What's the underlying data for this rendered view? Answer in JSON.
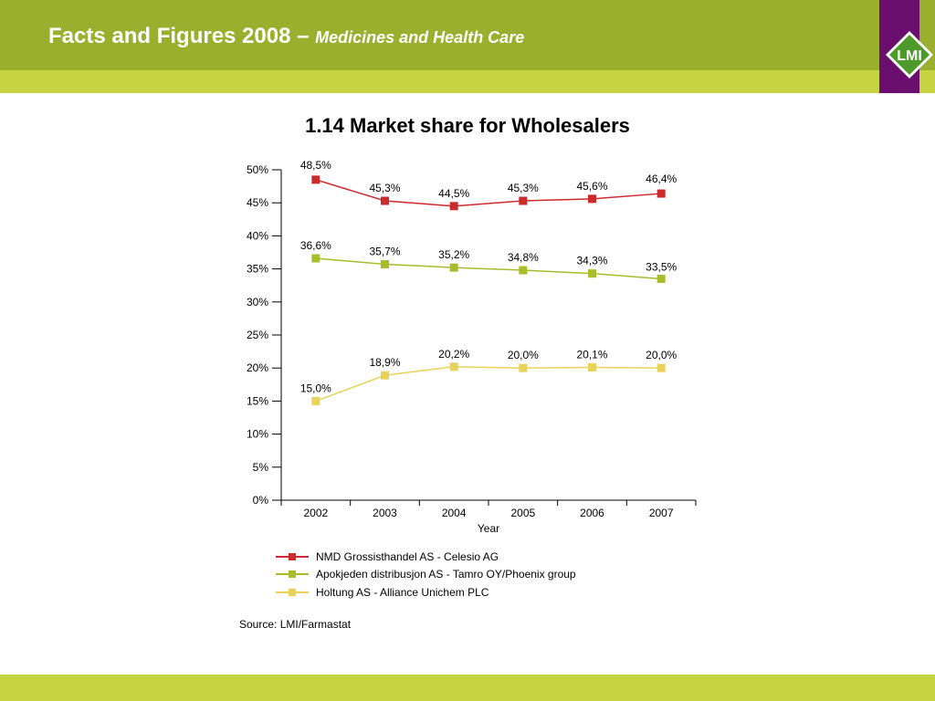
{
  "header": {
    "title": "Facts and Figures 2008 –",
    "subtitle": "Medicines and Health Care",
    "logo_text": "LMI"
  },
  "colors": {
    "header_green": "#9aaf2e",
    "stripe_green": "#c5d440",
    "logo_purple": "#6b0f6e",
    "logo_green": "#4c9a2a"
  },
  "source": "Source: LMI/Farmastat",
  "chart_data": {
    "type": "line",
    "title": "1.14 Market share for Wholesalers",
    "xlabel": "Year",
    "ylabel": "",
    "x": [
      "2002",
      "2003",
      "2004",
      "2005",
      "2006",
      "2007"
    ],
    "yticks": [
      "0%",
      "5%",
      "10%",
      "15%",
      "20%",
      "25%",
      "30%",
      "35%",
      "40%",
      "45%",
      "50%"
    ],
    "ylim": [
      0,
      50
    ],
    "grid": false,
    "legend_position": "bottom",
    "series": [
      {
        "name": "NMD Grossisthandel AS - Celesio AG",
        "color": "#cc2b2e",
        "values": [
          48.5,
          45.3,
          44.5,
          45.3,
          45.6,
          46.4
        ],
        "labels": [
          "48,5%",
          "45,3%",
          "44,5%",
          "45,3%",
          "45,6%",
          "46,4%"
        ]
      },
      {
        "name": "Apokjeden distribusjon AS - Tamro OY/Phoenix group",
        "color": "#a8bd2b",
        "values": [
          36.6,
          35.7,
          35.2,
          34.8,
          34.3,
          33.5
        ],
        "labels": [
          "36,6%",
          "35,7%",
          "35,2%",
          "34,8%",
          "34,3%",
          "33,5%"
        ]
      },
      {
        "name": "Holtung AS - Alliance Unichem PLC",
        "color": "#e8d25a",
        "values": [
          15.0,
          18.9,
          20.2,
          20.0,
          20.1,
          20.0
        ],
        "labels": [
          "15,0%",
          "18,9%",
          "20,2%",
          "20,0%",
          "20,1%",
          "20,0%"
        ]
      }
    ]
  }
}
